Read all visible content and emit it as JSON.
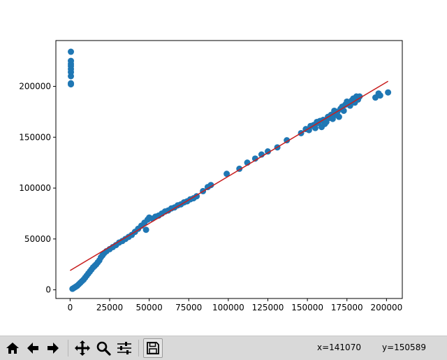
{
  "chart_data": {
    "type": "scatter",
    "title": "",
    "xlabel": "",
    "ylabel": "",
    "xlim": [
      -9000,
      210000
    ],
    "ylim": [
      -8500,
      245000
    ],
    "x_ticks": [
      0,
      25000,
      50000,
      75000,
      100000,
      125000,
      150000,
      175000,
      200000
    ],
    "y_ticks": [
      0,
      50000,
      100000,
      150000,
      200000
    ],
    "x_tick_labels": [
      "0",
      "25000",
      "50000",
      "75000",
      "100000",
      "125000",
      "150000",
      "175000",
      "200000"
    ],
    "y_tick_labels": [
      "0",
      "50000",
      "100000",
      "150000",
      "200000"
    ],
    "grid": false,
    "series": [
      {
        "kind": "scatter",
        "color": "#1f77b4",
        "x": [
          500,
          500,
          500,
          500,
          500,
          500,
          500,
          500,
          500,
          1500,
          2500,
          3500,
          4500,
          5500,
          6500,
          7500,
          8500,
          9500,
          10500,
          11500,
          12500,
          13500,
          14500,
          15500,
          16500,
          17500,
          18500,
          19500,
          20500,
          21500,
          23000,
          25000,
          27000,
          29000,
          31000,
          33000,
          35000,
          37000,
          39000,
          41000,
          43000,
          45000,
          47000,
          48000,
          49000,
          50000,
          52000,
          54000,
          56000,
          58000,
          60000,
          62000,
          64000,
          66000,
          68000,
          70000,
          72000,
          74000,
          76000,
          78000,
          80000,
          84000,
          87000,
          89000,
          99000,
          107000,
          112000,
          117000,
          121000,
          125000,
          131000,
          137000,
          146000,
          149000,
          151000,
          152000,
          154000,
          155000,
          156000,
          157000,
          158000,
          159000,
          160000,
          161000,
          162000,
          163000,
          164000,
          165000,
          166000,
          167000,
          168000,
          169000,
          170000,
          171000,
          172000,
          173000,
          174000,
          175000,
          176000,
          177000,
          178000,
          179000,
          180000,
          181000,
          182000,
          183000,
          193000,
          195000,
          196000,
          201000
        ],
        "y": [
          202000,
          203000,
          210000,
          214000,
          217000,
          220000,
          222000,
          225000,
          234000,
          1000,
          2000,
          3000,
          4000,
          5500,
          7000,
          8500,
          10000,
          12000,
          14000,
          16000,
          18000,
          20000,
          22000,
          23500,
          25000,
          27000,
          29000,
          32000,
          34000,
          36000,
          38000,
          40000,
          42000,
          44000,
          46500,
          48000,
          50000,
          52000,
          54000,
          57000,
          60000,
          63000,
          66000,
          59000,
          69000,
          71000,
          70000,
          72000,
          73000,
          75000,
          77000,
          78000,
          80000,
          81000,
          83000,
          84000,
          86000,
          87000,
          89000,
          90000,
          92000,
          97000,
          101000,
          103000,
          114000,
          119000,
          125000,
          129000,
          133000,
          136000,
          140000,
          147000,
          154000,
          158000,
          157000,
          161000,
          162000,
          159000,
          165000,
          164000,
          166000,
          160000,
          167000,
          163000,
          165000,
          170000,
          169000,
          172000,
          168000,
          176000,
          172000,
          175000,
          170000,
          178000,
          180000,
          176000,
          182000,
          185000,
          183000,
          181000,
          186000,
          188000,
          184000,
          190000,
          187000,
          190000,
          189000,
          193000,
          191000,
          194000
        ]
      },
      {
        "kind": "line",
        "color": "#c81e1e",
        "x": [
          0,
          201000
        ],
        "y": [
          19000,
          205000
        ]
      }
    ]
  },
  "toolbar": {
    "buttons": [
      {
        "name": "home-button",
        "icon": "home-icon"
      },
      {
        "name": "back-button",
        "icon": "arrow-left-icon"
      },
      {
        "name": "forward-button",
        "icon": "arrow-right-icon"
      },
      {
        "name": "pan-button",
        "icon": "move-icon"
      },
      {
        "name": "zoom-button",
        "icon": "magnifier-icon"
      },
      {
        "name": "configure-subplots-button",
        "icon": "sliders-icon"
      },
      {
        "name": "save-button",
        "icon": "floppy-disk-icon"
      }
    ],
    "coord_x": "x=141070",
    "coord_y": "y=150589"
  }
}
